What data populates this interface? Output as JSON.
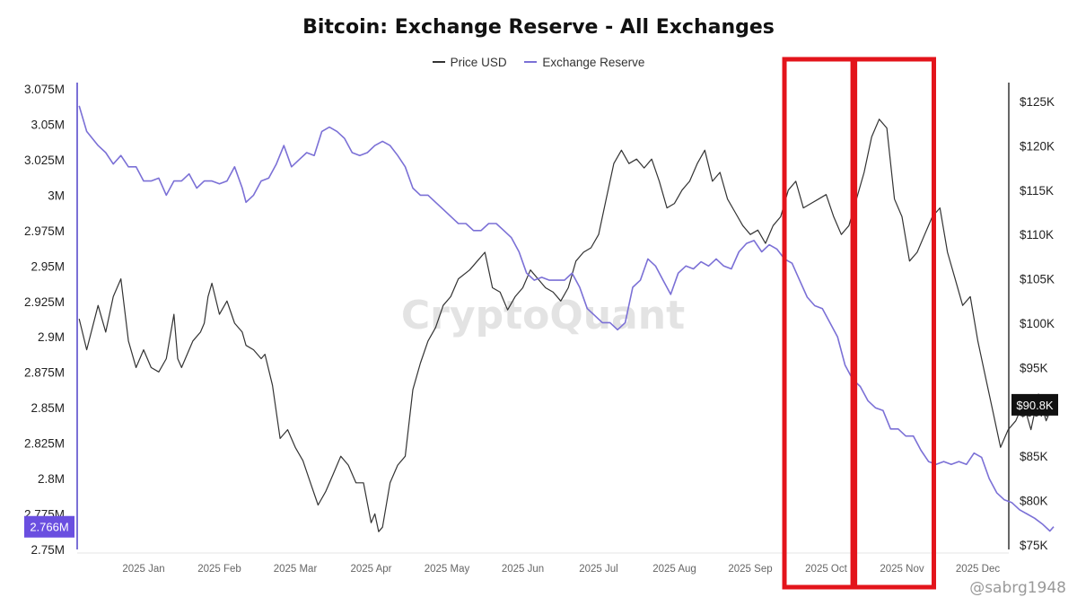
{
  "chart_data": {
    "type": "line",
    "title": "Bitcoin: Exchange Reserve - All Exchanges",
    "legend": {
      "placement": "top-center"
    },
    "watermark": "CryptoQuant",
    "footer_watermark": "@sabrg1948",
    "x_categories": [
      "2025 Jan",
      "2025 Feb",
      "2025 Mar",
      "2025 Apr",
      "2025 May",
      "2025 Jun",
      "2025 Jul",
      "2025 Aug",
      "2025 Sep",
      "2025 Oct",
      "2025 Nov",
      "2025 Dec"
    ],
    "y_left": {
      "min": 2.75,
      "max": 3.075,
      "ticks": [
        3.075,
        3.05,
        3.025,
        3.0,
        2.975,
        2.95,
        2.925,
        2.9,
        2.875,
        2.85,
        2.825,
        2.8,
        2.775,
        2.75
      ],
      "tick_labels": [
        "3.075M",
        "3.05M",
        "3.025M",
        "3M",
        "2.975M",
        "2.95M",
        "2.925M",
        "2.9M",
        "2.875M",
        "2.85M",
        "2.825M",
        "2.8M",
        "2.775M",
        "2.75M"
      ],
      "current_label": "2.766M",
      "current_value": 2.766
    },
    "y_right": {
      "min": 75,
      "max": 125,
      "ticks": [
        125,
        120,
        115,
        110,
        105,
        100,
        95,
        90,
        85,
        80,
        75
      ],
      "tick_labels": [
        "$125K",
        "$120K",
        "$115K",
        "$110K",
        "$105K",
        "$100K",
        "$95K",
        "$90K",
        "$85K",
        "$80K",
        "$75K"
      ],
      "current_label": "$90.8K",
      "current_value": 90.8
    },
    "highlight_boxes": [
      {
        "from": 8.45,
        "to": 9.35,
        "color": "#e3141b"
      },
      {
        "from": 9.38,
        "to": 10.42,
        "color": "#e3141b"
      }
    ],
    "series": [
      {
        "name": "Price USD",
        "axis": "right",
        "color": "#333333",
        "points": [
          [
            -0.85,
            100.5
          ],
          [
            -0.75,
            97
          ],
          [
            -0.6,
            102
          ],
          [
            -0.5,
            99
          ],
          [
            -0.4,
            103
          ],
          [
            -0.3,
            105
          ],
          [
            -0.2,
            98
          ],
          [
            -0.1,
            95
          ],
          [
            0.0,
            97
          ],
          [
            0.1,
            95
          ],
          [
            0.2,
            94.5
          ],
          [
            0.3,
            96
          ],
          [
            0.4,
            101
          ],
          [
            0.45,
            96
          ],
          [
            0.5,
            95
          ],
          [
            0.6,
            97
          ],
          [
            0.65,
            98
          ],
          [
            0.75,
            99
          ],
          [
            0.8,
            100
          ],
          [
            0.85,
            103
          ],
          [
            0.9,
            104.5
          ],
          [
            1.0,
            101
          ],
          [
            1.1,
            102.5
          ],
          [
            1.2,
            100
          ],
          [
            1.3,
            99
          ],
          [
            1.35,
            97.5
          ],
          [
            1.45,
            97
          ],
          [
            1.55,
            96
          ],
          [
            1.6,
            96.5
          ],
          [
            1.7,
            93
          ],
          [
            1.8,
            87
          ],
          [
            1.9,
            88
          ],
          [
            2.0,
            86
          ],
          [
            2.1,
            84.5
          ],
          [
            2.2,
            82
          ],
          [
            2.3,
            79.5
          ],
          [
            2.4,
            81
          ],
          [
            2.5,
            83
          ],
          [
            2.6,
            85
          ],
          [
            2.7,
            84
          ],
          [
            2.8,
            82
          ],
          [
            2.9,
            82
          ],
          [
            3.0,
            77.5
          ],
          [
            3.05,
            78.5
          ],
          [
            3.1,
            76.5
          ],
          [
            3.15,
            77
          ],
          [
            3.25,
            82
          ],
          [
            3.35,
            84
          ],
          [
            3.45,
            85
          ],
          [
            3.55,
            92.5
          ],
          [
            3.65,
            95.5
          ],
          [
            3.75,
            98
          ],
          [
            3.85,
            99.5
          ],
          [
            3.95,
            102
          ],
          [
            4.05,
            103
          ],
          [
            4.15,
            105
          ],
          [
            4.3,
            106
          ],
          [
            4.4,
            107
          ],
          [
            4.5,
            108
          ],
          [
            4.6,
            104
          ],
          [
            4.7,
            103.5
          ],
          [
            4.8,
            101.5
          ],
          [
            4.9,
            103
          ],
          [
            5.0,
            104
          ],
          [
            5.1,
            106
          ],
          [
            5.2,
            105
          ],
          [
            5.3,
            104
          ],
          [
            5.4,
            103.5
          ],
          [
            5.5,
            102.5
          ],
          [
            5.6,
            104
          ],
          [
            5.7,
            107
          ],
          [
            5.8,
            108
          ],
          [
            5.9,
            108.5
          ],
          [
            6.0,
            110
          ],
          [
            6.1,
            114
          ],
          [
            6.2,
            118
          ],
          [
            6.3,
            119.5
          ],
          [
            6.4,
            118
          ],
          [
            6.5,
            118.5
          ],
          [
            6.6,
            117.5
          ],
          [
            6.7,
            118.5
          ],
          [
            6.8,
            116
          ],
          [
            6.9,
            113
          ],
          [
            7.0,
            113.5
          ],
          [
            7.1,
            115
          ],
          [
            7.2,
            116
          ],
          [
            7.3,
            118
          ],
          [
            7.4,
            119.5
          ],
          [
            7.5,
            116
          ],
          [
            7.6,
            117
          ],
          [
            7.7,
            114
          ],
          [
            7.8,
            112.5
          ],
          [
            7.9,
            111
          ],
          [
            8.0,
            110
          ],
          [
            8.1,
            110.5
          ],
          [
            8.2,
            109
          ],
          [
            8.3,
            111
          ],
          [
            8.4,
            112
          ],
          [
            8.5,
            115
          ],
          [
            8.6,
            116
          ],
          [
            8.7,
            113
          ],
          [
            8.8,
            113.5
          ],
          [
            8.9,
            114
          ],
          [
            9.0,
            114.5
          ],
          [
            9.1,
            112
          ],
          [
            9.2,
            110
          ],
          [
            9.3,
            111
          ],
          [
            9.4,
            114
          ],
          [
            9.5,
            117
          ],
          [
            9.6,
            121
          ],
          [
            9.7,
            123
          ],
          [
            9.8,
            122
          ],
          [
            9.9,
            114
          ],
          [
            10.0,
            112
          ],
          [
            10.1,
            107
          ],
          [
            10.2,
            108
          ],
          [
            10.3,
            110
          ],
          [
            10.4,
            112
          ],
          [
            10.5,
            113
          ],
          [
            10.6,
            108
          ],
          [
            10.7,
            105
          ],
          [
            10.8,
            102
          ],
          [
            10.9,
            103
          ],
          [
            11.0,
            98
          ],
          [
            11.1,
            94
          ],
          [
            11.2,
            90
          ],
          [
            11.3,
            86
          ],
          [
            11.4,
            88
          ],
          [
            11.5,
            89
          ],
          [
            11.6,
            91
          ],
          [
            11.7,
            88
          ],
          [
            11.8,
            92
          ],
          [
            11.9,
            89
          ],
          [
            12.0,
            91
          ]
        ]
      },
      {
        "name": "Exchange Reserve",
        "axis": "left",
        "color": "#7b70d6",
        "points": [
          [
            -0.85,
            3.063
          ],
          [
            -0.75,
            3.045
          ],
          [
            -0.6,
            3.035
          ],
          [
            -0.5,
            3.03
          ],
          [
            -0.4,
            3.022
          ],
          [
            -0.3,
            3.028
          ],
          [
            -0.2,
            3.02
          ],
          [
            -0.1,
            3.02
          ],
          [
            0.0,
            3.01
          ],
          [
            0.1,
            3.01
          ],
          [
            0.2,
            3.012
          ],
          [
            0.3,
            3.0
          ],
          [
            0.4,
            3.01
          ],
          [
            0.5,
            3.01
          ],
          [
            0.6,
            3.015
          ],
          [
            0.7,
            3.005
          ],
          [
            0.8,
            3.01
          ],
          [
            0.9,
            3.01
          ],
          [
            1.0,
            3.008
          ],
          [
            1.1,
            3.01
          ],
          [
            1.2,
            3.02
          ],
          [
            1.3,
            3.005
          ],
          [
            1.35,
            2.995
          ],
          [
            1.45,
            3.0
          ],
          [
            1.55,
            3.01
          ],
          [
            1.65,
            3.012
          ],
          [
            1.75,
            3.022
          ],
          [
            1.85,
            3.035
          ],
          [
            1.95,
            3.02
          ],
          [
            2.05,
            3.025
          ],
          [
            2.15,
            3.03
          ],
          [
            2.25,
            3.028
          ],
          [
            2.35,
            3.045
          ],
          [
            2.45,
            3.048
          ],
          [
            2.55,
            3.045
          ],
          [
            2.65,
            3.04
          ],
          [
            2.75,
            3.03
          ],
          [
            2.85,
            3.028
          ],
          [
            2.95,
            3.03
          ],
          [
            3.05,
            3.035
          ],
          [
            3.15,
            3.038
          ],
          [
            3.25,
            3.035
          ],
          [
            3.35,
            3.028
          ],
          [
            3.45,
            3.02
          ],
          [
            3.55,
            3.005
          ],
          [
            3.65,
            3.0
          ],
          [
            3.75,
            3.0
          ],
          [
            3.85,
            2.995
          ],
          [
            3.95,
            2.99
          ],
          [
            4.05,
            2.985
          ],
          [
            4.15,
            2.98
          ],
          [
            4.25,
            2.98
          ],
          [
            4.35,
            2.975
          ],
          [
            4.45,
            2.975
          ],
          [
            4.55,
            2.98
          ],
          [
            4.65,
            2.98
          ],
          [
            4.75,
            2.975
          ],
          [
            4.85,
            2.97
          ],
          [
            4.95,
            2.96
          ],
          [
            5.05,
            2.945
          ],
          [
            5.15,
            2.94
          ],
          [
            5.25,
            2.942
          ],
          [
            5.35,
            2.94
          ],
          [
            5.45,
            2.94
          ],
          [
            5.55,
            2.94
          ],
          [
            5.65,
            2.945
          ],
          [
            5.75,
            2.935
          ],
          [
            5.85,
            2.92
          ],
          [
            5.95,
            2.915
          ],
          [
            6.05,
            2.91
          ],
          [
            6.15,
            2.91
          ],
          [
            6.25,
            2.905
          ],
          [
            6.35,
            2.91
          ],
          [
            6.45,
            2.935
          ],
          [
            6.55,
            2.94
          ],
          [
            6.65,
            2.955
          ],
          [
            6.75,
            2.95
          ],
          [
            6.85,
            2.94
          ],
          [
            6.95,
            2.93
          ],
          [
            7.05,
            2.945
          ],
          [
            7.15,
            2.95
          ],
          [
            7.25,
            2.948
          ],
          [
            7.35,
            2.953
          ],
          [
            7.45,
            2.95
          ],
          [
            7.55,
            2.955
          ],
          [
            7.65,
            2.95
          ],
          [
            7.75,
            2.948
          ],
          [
            7.85,
            2.96
          ],
          [
            7.95,
            2.966
          ],
          [
            8.05,
            2.968
          ],
          [
            8.15,
            2.96
          ],
          [
            8.25,
            2.965
          ],
          [
            8.35,
            2.962
          ],
          [
            8.45,
            2.955
          ],
          [
            8.55,
            2.952
          ],
          [
            8.65,
            2.94
          ],
          [
            8.75,
            2.928
          ],
          [
            8.85,
            2.922
          ],
          [
            8.95,
            2.92
          ],
          [
            9.05,
            2.91
          ],
          [
            9.15,
            2.9
          ],
          [
            9.25,
            2.88
          ],
          [
            9.35,
            2.87
          ],
          [
            9.45,
            2.865
          ],
          [
            9.55,
            2.855
          ],
          [
            9.65,
            2.85
          ],
          [
            9.75,
            2.848
          ],
          [
            9.85,
            2.835
          ],
          [
            9.95,
            2.835
          ],
          [
            10.05,
            2.83
          ],
          [
            10.15,
            2.83
          ],
          [
            10.25,
            2.82
          ],
          [
            10.35,
            2.812
          ],
          [
            10.45,
            2.81
          ],
          [
            10.55,
            2.812
          ],
          [
            10.65,
            2.81
          ],
          [
            10.75,
            2.812
          ],
          [
            10.85,
            2.81
          ],
          [
            10.95,
            2.818
          ],
          [
            11.05,
            2.815
          ],
          [
            11.15,
            2.8
          ],
          [
            11.25,
            2.79
          ],
          [
            11.35,
            2.785
          ],
          [
            11.45,
            2.783
          ],
          [
            11.55,
            2.778
          ],
          [
            11.65,
            2.775
          ],
          [
            11.75,
            2.772
          ],
          [
            11.85,
            2.768
          ],
          [
            11.95,
            2.763
          ],
          [
            12.0,
            2.766
          ]
        ]
      }
    ]
  }
}
